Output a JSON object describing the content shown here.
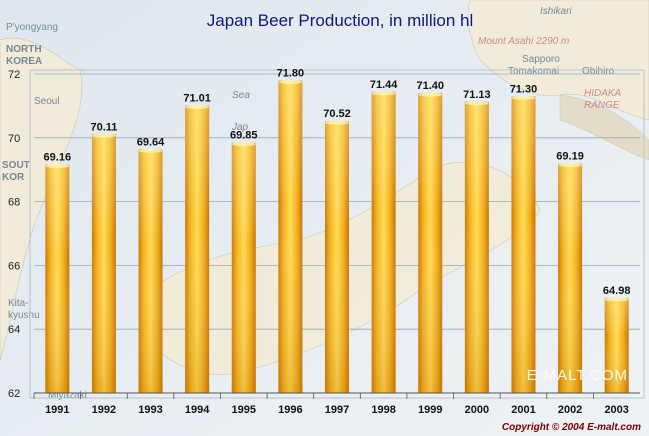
{
  "chart_data": {
    "type": "bar",
    "title": "Japan Beer Production, in million hl",
    "categories": [
      "1991",
      "1992",
      "1993",
      "1994",
      "1995",
      "1996",
      "1997",
      "1998",
      "1999",
      "2000",
      "2001",
      "2002",
      "2003"
    ],
    "values": [
      69.16,
      70.11,
      69.64,
      71.01,
      69.85,
      71.8,
      70.52,
      71.44,
      71.4,
      71.13,
      71.3,
      69.19,
      64.98
    ],
    "value_labels": [
      "69.16",
      "70.11",
      "69.64",
      "71.01",
      "69.85",
      "71.80",
      "70.52",
      "71.44",
      "71.40",
      "71.13",
      "71.30",
      "69.19",
      "64.98"
    ],
    "ylim": [
      62,
      72
    ],
    "yticks": [
      "62",
      "64",
      "66",
      "68",
      "70",
      "72"
    ],
    "grid": true,
    "bar_color": "#f0b11a"
  },
  "watermark": "E-MALT.COM",
  "copyright": "Copyright © 2004 E-malt.com",
  "map_labels": {
    "pyongyang": "P'yongyang",
    "north_korea_1": "NORTH",
    "north_korea_2": "KOREA",
    "seoul": "Seoul",
    "south_korea_1": "SOUT",
    "south_korea_2": "KOR",
    "sea_1": "Sea",
    "sea_2": "Jap",
    "ishikari": "Ishikari",
    "mount_asahi": "Mount Asahi 2290 m",
    "sapporo": "Sapporo",
    "tomakomai": "Tomakomai",
    "obihiro": "Obihiro",
    "hidaka_1": "HIDAKA",
    "hidaka_2": "RANGE",
    "kita": "Kita-",
    "kyushu": "kyushu",
    "miyazaki": "Miyazaki"
  }
}
